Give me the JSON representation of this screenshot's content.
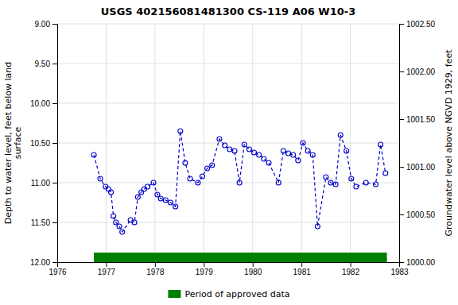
{
  "chart_data": {
    "type": "line",
    "title": "USGS 402156081481300 CS-119 A06 W10-3",
    "ylabel": "Depth to water level, feet below land\nsurface",
    "y2label": "Groundwater level above NGVD 1929, feet",
    "xlim": [
      1976,
      1983
    ],
    "xticks": [
      1976,
      1977,
      1978,
      1979,
      1980,
      1981,
      1982,
      1983
    ],
    "ylim": [
      12.0,
      9.0
    ],
    "yticks": [
      {
        "value": 9.0,
        "label": "9.00"
      },
      {
        "value": 9.5,
        "label": "9.50"
      },
      {
        "value": 10.0,
        "label": "10.00"
      },
      {
        "value": 10.5,
        "label": "10.50"
      },
      {
        "value": 11.0,
        "label": "11.00"
      },
      {
        "value": 11.5,
        "label": "11.50"
      },
      {
        "value": 12.0,
        "label": "12.00"
      }
    ],
    "y2lim": [
      1000.0,
      1002.5
    ],
    "y2ticks": [
      {
        "value": 1000.0,
        "label": "1000.00"
      },
      {
        "value": 1000.5,
        "label": "1000.50"
      },
      {
        "value": 1001.0,
        "label": "1001.00"
      },
      {
        "value": 1001.5,
        "label": "1001.50"
      },
      {
        "value": 1002.0,
        "label": "1002.00"
      },
      {
        "value": 1002.5,
        "label": "1002.50"
      }
    ],
    "grid": true,
    "legend": "bottom",
    "x": [
      1976.75,
      1976.88,
      1976.99,
      1977.05,
      1977.1,
      1977.15,
      1977.2,
      1977.27,
      1977.33,
      1977.5,
      1977.58,
      1977.65,
      1977.72,
      1977.78,
      1977.85,
      1977.97,
      1978.05,
      1978.12,
      1978.22,
      1978.32,
      1978.42,
      1978.52,
      1978.62,
      1978.72,
      1978.88,
      1978.97,
      1979.07,
      1979.17,
      1979.32,
      1979.43,
      1979.53,
      1979.63,
      1979.73,
      1979.83,
      1979.93,
      1980.03,
      1980.13,
      1980.23,
      1980.33,
      1980.53,
      1980.63,
      1980.73,
      1980.83,
      1980.93,
      1981.03,
      1981.13,
      1981.23,
      1981.33,
      1981.5,
      1981.6,
      1981.7,
      1981.8,
      1981.92,
      1982.02,
      1982.12,
      1982.32,
      1982.52,
      1982.62,
      1982.72
    ],
    "series": [
      {
        "color": "#0000CC",
        "line_style": "dashed",
        "marker": "circle",
        "values": [
          10.65,
          10.95,
          11.05,
          11.08,
          11.12,
          11.42,
          11.5,
          11.55,
          11.62,
          11.47,
          11.5,
          11.18,
          11.12,
          11.08,
          11.05,
          11.0,
          11.15,
          11.2,
          11.22,
          11.25,
          11.3,
          10.35,
          10.75,
          10.95,
          11.0,
          10.92,
          10.82,
          10.78,
          10.45,
          10.53,
          10.58,
          10.6,
          11.0,
          10.52,
          10.58,
          10.62,
          10.65,
          10.7,
          10.75,
          11.0,
          10.6,
          10.63,
          10.65,
          10.72,
          10.5,
          10.6,
          10.65,
          11.55,
          10.93,
          11.0,
          11.02,
          10.4,
          10.6,
          10.95,
          11.05,
          11.0,
          11.02,
          10.52,
          10.88
        ]
      }
    ],
    "spans": [
      {
        "name": "Period of approved data",
        "color": "#008000",
        "x": [
          1976.75,
          1982.75
        ],
        "y": [
          11.88,
          12.0
        ]
      }
    ]
  }
}
